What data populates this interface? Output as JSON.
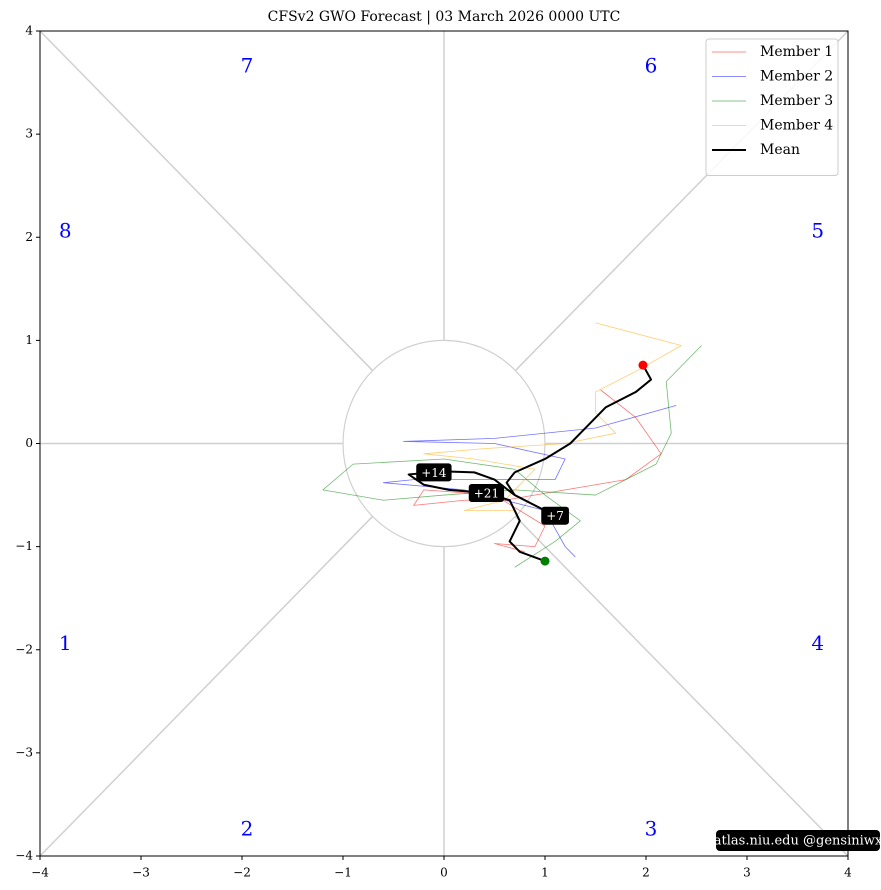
{
  "chart_data": {
    "type": "line",
    "title": "CFSv2 GWO Forecast   |   03  March  2026 0000 UTC",
    "xlim": [
      -4,
      4
    ],
    "ylim": [
      -4,
      4
    ],
    "xticks": [
      {
        "value": -4,
        "label": "−4"
      },
      {
        "value": -3,
        "label": "−3"
      },
      {
        "value": -2,
        "label": "−2"
      },
      {
        "value": -1,
        "label": "−1"
      },
      0,
      1,
      2,
      3,
      4
    ],
    "yticks": [
      {
        "value": -4,
        "label": "−4"
      },
      {
        "value": -3,
        "label": "−3"
      },
      {
        "value": -2,
        "label": "−2"
      },
      {
        "value": -1,
        "label": "−1"
      },
      0,
      1,
      2,
      3,
      4
    ],
    "legend_position": "upper right",
    "series": [
      {
        "name": "Member 1",
        "color": "#ff0000",
        "x": [
          1.55,
          1.9,
          2.15,
          1.8,
          1.2,
          0.6,
          0.2,
          -0.3,
          -0.2,
          0.5,
          1.0,
          0.9,
          0.5,
          0.8
        ],
        "values": [
          0.52,
          0.25,
          -0.1,
          -0.35,
          -0.45,
          -0.55,
          -0.55,
          -0.6,
          -0.45,
          -0.5,
          -0.8,
          -1.0,
          -0.97,
          -1.05
        ]
      },
      {
        "name": "Member 2",
        "color": "#0000ff",
        "x": [
          2.3,
          1.5,
          0.5,
          -0.4,
          0.5,
          1.2,
          1.1,
          0.5,
          -0.3,
          -0.6,
          0.2,
          1.0,
          1.2,
          1.3
        ],
        "values": [
          0.37,
          0.15,
          0.05,
          0.02,
          0.0,
          -0.15,
          -0.35,
          -0.35,
          -0.35,
          -0.38,
          -0.45,
          -0.65,
          -1.0,
          -1.1
        ]
      },
      {
        "name": "Member 3",
        "color": "#008000",
        "x": [
          2.55,
          2.2,
          2.25,
          2.1,
          1.5,
          0.7,
          0.0,
          -0.6,
          -1.2,
          -0.9,
          0.0,
          0.7,
          1.0,
          1.35,
          1.1,
          0.7
        ],
        "values": [
          0.95,
          0.6,
          0.1,
          -0.2,
          -0.5,
          -0.45,
          -0.5,
          -0.55,
          -0.45,
          -0.2,
          -0.15,
          -0.25,
          -0.5,
          -0.75,
          -0.95,
          -1.2
        ]
      },
      {
        "name": "Member 4",
        "color": "#ffa500",
        "x": [
          1.5,
          2.35,
          1.9,
          1.5,
          1.5,
          1.7,
          1.2,
          0.4,
          -0.2,
          0.3,
          0.9,
          0.6,
          0.2,
          0.7
        ],
        "values": [
          1.17,
          0.95,
          0.7,
          0.5,
          0.3,
          0.1,
          0.0,
          -0.05,
          -0.1,
          -0.15,
          -0.25,
          -0.55,
          -0.65,
          -0.65
        ]
      },
      {
        "name": "Mean",
        "color": "#000000",
        "x": [
          1.97,
          2.05,
          1.9,
          1.6,
          1.4,
          1.25,
          1.0,
          0.7,
          0.62,
          0.7,
          0.9,
          1.1,
          0.7,
          0.5,
          0.3,
          0.0,
          -0.35,
          -0.2,
          0.05,
          0.42,
          0.65,
          0.75,
          0.65,
          0.75,
          1.0
        ],
        "values": [
          0.76,
          0.62,
          0.5,
          0.35,
          0.15,
          0.0,
          -0.15,
          -0.28,
          -0.38,
          -0.5,
          -0.6,
          -0.7,
          -0.5,
          -0.35,
          -0.28,
          -0.27,
          -0.3,
          -0.4,
          -0.45,
          -0.48,
          -0.55,
          -0.75,
          -0.95,
          -1.05,
          -1.14
        ]
      }
    ],
    "start_color": "#ff0000",
    "end_color": "#008000",
    "lead_labels": [
      {
        "text": "+7",
        "x": 1.1,
        "y": -0.7
      },
      {
        "text": "+14",
        "x": -0.1,
        "y": -0.28
      },
      {
        "text": "+21",
        "x": 0.42,
        "y": -0.48
      }
    ],
    "phase_labels": [
      "1",
      "2",
      "3",
      "4",
      "5",
      "6",
      "7",
      "8"
    ],
    "watermark": "atlas.niu.edu  @gensiniwx"
  }
}
